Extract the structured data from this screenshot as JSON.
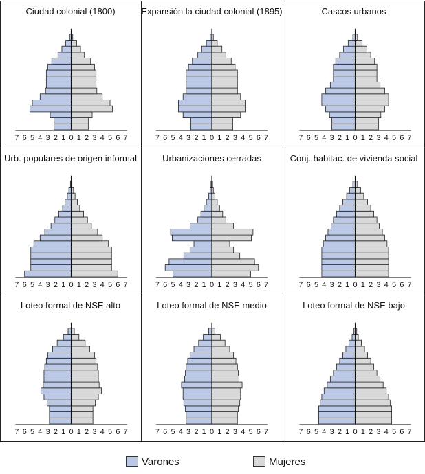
{
  "colors": {
    "male": "#bcc9e6",
    "female": "#d9d9d9",
    "stroke": "#222222"
  },
  "legend": {
    "male_label": "Varones",
    "female_label": "Mujeres"
  },
  "chart_data": [
    {
      "type": "bar",
      "orientation": "horizontal-pyramid",
      "title": "Ciudad colonial (1800)",
      "xlim": [
        -7,
        7
      ],
      "xticks": [
        "7",
        "6",
        "5",
        "4",
        "3",
        "2",
        "1",
        "0",
        "1",
        "2",
        "3",
        "4",
        "5",
        "6",
        "7"
      ],
      "series": [
        {
          "name": "Varones",
          "values": [
            2.2,
            2.2,
            2.7,
            5.3,
            5.0,
            4.0,
            3.3,
            3.2,
            3.2,
            3.2,
            3.0,
            2.5,
            1.7,
            1.2,
            0.7,
            0.2
          ]
        },
        {
          "name": "Mujeres",
          "values": [
            2.2,
            2.2,
            2.7,
            5.3,
            5.0,
            4.0,
            3.3,
            3.2,
            3.2,
            3.2,
            3.0,
            2.5,
            1.7,
            1.2,
            0.7,
            0.2
          ]
        }
      ]
    },
    {
      "type": "bar",
      "orientation": "horizontal-pyramid",
      "title": "Expansión la ciudad colonial (1895)",
      "xlim": [
        -7,
        7
      ],
      "xticks": [
        "7",
        "6",
        "5",
        "4",
        "3",
        "2",
        "1",
        "0",
        "1",
        "2",
        "3",
        "4",
        "5",
        "6",
        "7"
      ],
      "series": [
        {
          "name": "Varones",
          "values": [
            2.7,
            2.7,
            3.7,
            4.3,
            4.3,
            3.7,
            3.3,
            3.3,
            3.3,
            3.3,
            3.0,
            2.5,
            1.8,
            1.3,
            0.7,
            0.2
          ]
        },
        {
          "name": "Mujeres",
          "values": [
            2.7,
            2.7,
            3.7,
            4.3,
            4.3,
            3.7,
            3.3,
            3.3,
            3.3,
            3.3,
            3.0,
            2.5,
            1.8,
            1.3,
            0.7,
            0.2
          ]
        }
      ]
    },
    {
      "type": "bar",
      "orientation": "horizontal-pyramid",
      "title": "Cascos urbanos",
      "xlim": [
        -7,
        7
      ],
      "xticks": [
        "7",
        "6",
        "5",
        "4",
        "3",
        "2",
        "1",
        "0",
        "1",
        "2",
        "3",
        "4",
        "5",
        "6",
        "7"
      ],
      "series": [
        {
          "name": "Varones",
          "values": [
            3.0,
            3.0,
            3.3,
            3.8,
            4.3,
            4.3,
            3.8,
            3.2,
            2.8,
            2.8,
            2.8,
            2.5,
            2.0,
            1.5,
            0.9,
            0.3
          ]
        },
        {
          "name": "Mujeres",
          "values": [
            3.0,
            3.0,
            3.3,
            3.8,
            4.3,
            4.3,
            3.8,
            3.2,
            2.8,
            2.8,
            2.8,
            2.5,
            2.0,
            1.5,
            0.9,
            0.3
          ]
        }
      ]
    },
    {
      "type": "bar",
      "orientation": "horizontal-pyramid",
      "title": "Urb. populares de origen informal",
      "xlim": [
        -7,
        7
      ],
      "xticks": [
        "7",
        "6",
        "5",
        "4",
        "3",
        "2",
        "1",
        "0",
        "1",
        "2",
        "3",
        "4",
        "5",
        "6",
        "7"
      ],
      "series": [
        {
          "name": "Varones",
          "values": [
            6.0,
            5.2,
            5.2,
            5.2,
            5.2,
            4.8,
            4.0,
            3.4,
            2.6,
            2.1,
            1.6,
            1.1,
            0.8,
            0.5,
            0.3,
            0.1
          ]
        },
        {
          "name": "Mujeres",
          "values": [
            6.0,
            5.2,
            5.2,
            5.2,
            5.2,
            4.8,
            4.0,
            3.4,
            2.6,
            2.1,
            1.6,
            1.1,
            0.8,
            0.5,
            0.3,
            0.1
          ]
        }
      ]
    },
    {
      "type": "bar",
      "orientation": "horizontal-pyramid",
      "title": "Urbanizaciones cerradas",
      "xlim": [
        -7,
        7
      ],
      "xticks": [
        "7",
        "6",
        "5",
        "4",
        "3",
        "2",
        "1",
        "0",
        "1",
        "2",
        "3",
        "4",
        "5",
        "6",
        "7"
      ],
      "series": [
        {
          "name": "Varones",
          "values": [
            5.0,
            6.0,
            5.5,
            3.6,
            2.8,
            2.3,
            5.1,
            5.3,
            2.8,
            1.8,
            1.4,
            1.0,
            0.7,
            0.4,
            0.2,
            0.1
          ]
        },
        {
          "name": "Mujeres",
          "values": [
            5.0,
            6.0,
            5.5,
            3.6,
            2.8,
            2.3,
            5.1,
            5.3,
            2.8,
            1.8,
            1.4,
            1.0,
            0.7,
            0.4,
            0.2,
            0.1
          ]
        }
      ]
    },
    {
      "type": "bar",
      "orientation": "horizontal-pyramid",
      "title": "Conj. habitac. de vivienda social",
      "xlim": [
        -7,
        7
      ],
      "xticks": [
        "7",
        "6",
        "5",
        "4",
        "3",
        "2",
        "1",
        "0",
        "1",
        "2",
        "3",
        "4",
        "5",
        "6",
        "7"
      ],
      "series": [
        {
          "name": "Varones",
          "values": [
            4.3,
            4.3,
            4.3,
            4.3,
            4.3,
            4.1,
            3.8,
            3.5,
            3.1,
            2.8,
            2.4,
            2.0,
            1.6,
            1.1,
            0.7,
            0.3
          ]
        },
        {
          "name": "Mujeres",
          "values": [
            4.3,
            4.3,
            4.3,
            4.3,
            4.3,
            4.1,
            3.8,
            3.5,
            3.1,
            2.8,
            2.4,
            2.0,
            1.6,
            1.1,
            0.7,
            0.3
          ]
        }
      ]
    },
    {
      "type": "bar",
      "orientation": "horizontal-pyramid",
      "title": "Loteo formal de NSE alto",
      "xlim": [
        -7,
        7
      ],
      "xticks": [
        "7",
        "6",
        "5",
        "4",
        "3",
        "2",
        "1",
        "0",
        "1",
        "2",
        "3",
        "4",
        "5",
        "6",
        "7"
      ],
      "series": [
        {
          "name": "Varones",
          "values": [
            2.8,
            2.8,
            2.8,
            3.1,
            3.5,
            3.9,
            3.6,
            3.5,
            3.5,
            3.4,
            3.2,
            3.0,
            2.4,
            1.8,
            1.0,
            0.4
          ]
        },
        {
          "name": "Mujeres",
          "values": [
            2.8,
            2.8,
            2.8,
            3.1,
            3.5,
            3.9,
            3.6,
            3.5,
            3.5,
            3.4,
            3.2,
            3.0,
            2.4,
            1.8,
            1.0,
            0.4
          ]
        }
      ]
    },
    {
      "type": "bar",
      "orientation": "horizontal-pyramid",
      "title": "Loteo formal de NSE medio",
      "xlim": [
        -7,
        7
      ],
      "xticks": [
        "7",
        "6",
        "5",
        "4",
        "3",
        "2",
        "1",
        "0",
        "1",
        "2",
        "3",
        "4",
        "5",
        "6",
        "7"
      ],
      "series": [
        {
          "name": "Varones",
          "values": [
            3.3,
            3.3,
            3.4,
            3.6,
            3.7,
            3.7,
            3.9,
            3.5,
            3.4,
            3.3,
            3.1,
            2.8,
            2.3,
            1.7,
            1.1,
            0.4
          ]
        },
        {
          "name": "Mujeres",
          "values": [
            3.3,
            3.3,
            3.4,
            3.6,
            3.7,
            3.7,
            3.9,
            3.5,
            3.4,
            3.3,
            3.1,
            2.8,
            2.3,
            1.7,
            1.1,
            0.4
          ]
        }
      ]
    },
    {
      "type": "bar",
      "orientation": "horizontal-pyramid",
      "title": "Loteo formal de NSE bajo",
      "xlim": [
        -7,
        7
      ],
      "xticks": [
        "7",
        "6",
        "5",
        "4",
        "3",
        "2",
        "1",
        "0",
        "1",
        "2",
        "3",
        "4",
        "5",
        "6",
        "7"
      ],
      "series": [
        {
          "name": "Varones",
          "values": [
            4.7,
            4.7,
            4.7,
            4.5,
            4.3,
            4.0,
            3.6,
            3.2,
            2.8,
            2.4,
            2.0,
            1.6,
            1.2,
            0.8,
            0.4,
            0.2
          ]
        },
        {
          "name": "Mujeres",
          "values": [
            4.7,
            4.7,
            4.7,
            4.5,
            4.3,
            4.0,
            3.6,
            3.2,
            2.8,
            2.4,
            2.0,
            1.6,
            1.2,
            0.8,
            0.4,
            0.2
          ]
        }
      ]
    }
  ]
}
